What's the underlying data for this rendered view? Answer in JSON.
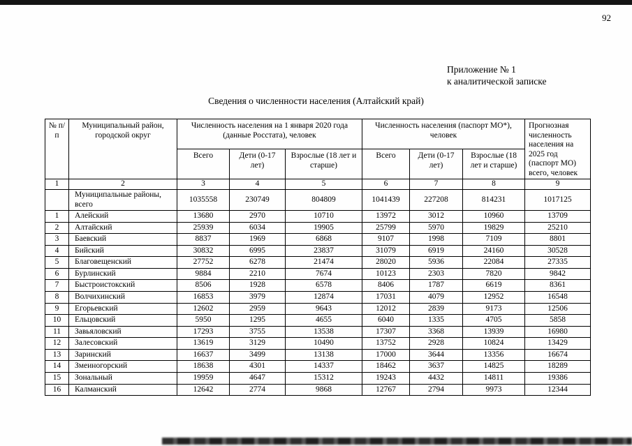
{
  "page": {
    "number": "92",
    "appendix_line1": "Приложение № 1",
    "appendix_line2": "к аналитической записке",
    "title": "Сведения о численности населения (Алтайский край)"
  },
  "table": {
    "header": {
      "col_num": "№ п/п",
      "col_district": "Муниципальный район, городской округ",
      "group_2020": "Численность населения на 1 января 2020 года (данные Росстата), человек",
      "group_passport": "Численность населения (паспорт МО*), человек",
      "col_forecast": "Прогнозная численность населения на 2025 год (паспорт МО) всего, человек",
      "sub_total": "Всего",
      "sub_children": "Дети (0-17 лет)",
      "sub_adults": "Взрослые (18 лет и старше)"
    },
    "column_numbers": [
      "1",
      "2",
      "3",
      "4",
      "5",
      "6",
      "7",
      "8",
      "9"
    ],
    "rows": [
      {
        "num": "",
        "name": "Муниципальные районы, всего",
        "values": [
          "1035558",
          "230749",
          "804809",
          "1041439",
          "227208",
          "814231",
          "1017125"
        ]
      },
      {
        "num": "1",
        "name": "Алейский",
        "values": [
          "13680",
          "2970",
          "10710",
          "13972",
          "3012",
          "10960",
          "13709"
        ]
      },
      {
        "num": "2",
        "name": "Алтайский",
        "values": [
          "25939",
          "6034",
          "19905",
          "25799",
          "5970",
          "19829",
          "25210"
        ]
      },
      {
        "num": "3",
        "name": "Баевский",
        "values": [
          "8837",
          "1969",
          "6868",
          "9107",
          "1998",
          "7109",
          "8801"
        ]
      },
      {
        "num": "4",
        "name": "Бийский",
        "values": [
          "30832",
          "6995",
          "23837",
          "31079",
          "6919",
          "24160",
          "30528"
        ]
      },
      {
        "num": "5",
        "name": "Благовещенский",
        "values": [
          "27752",
          "6278",
          "21474",
          "28020",
          "5936",
          "22084",
          "27335"
        ]
      },
      {
        "num": "6",
        "name": "Бурлинский",
        "values": [
          "9884",
          "2210",
          "7674",
          "10123",
          "2303",
          "7820",
          "9842"
        ]
      },
      {
        "num": "7",
        "name": "Быстроистокский",
        "values": [
          "8506",
          "1928",
          "6578",
          "8406",
          "1787",
          "6619",
          "8361"
        ]
      },
      {
        "num": "8",
        "name": "Волчихинский",
        "values": [
          "16853",
          "3979",
          "12874",
          "17031",
          "4079",
          "12952",
          "16548"
        ]
      },
      {
        "num": "9",
        "name": "Егорьевский",
        "values": [
          "12602",
          "2959",
          "9643",
          "12012",
          "2839",
          "9173",
          "12506"
        ]
      },
      {
        "num": "10",
        "name": "Ельцовский",
        "values": [
          "5950",
          "1295",
          "4655",
          "6040",
          "1335",
          "4705",
          "5858"
        ]
      },
      {
        "num": "11",
        "name": "Завьяловский",
        "values": [
          "17293",
          "3755",
          "13538",
          "17307",
          "3368",
          "13939",
          "16980"
        ]
      },
      {
        "num": "12",
        "name": "Залесовский",
        "values": [
          "13619",
          "3129",
          "10490",
          "13752",
          "2928",
          "10824",
          "13429"
        ]
      },
      {
        "num": "13",
        "name": "Заринский",
        "values": [
          "16637",
          "3499",
          "13138",
          "17000",
          "3644",
          "13356",
          "16674"
        ]
      },
      {
        "num": "14",
        "name": "Змеиногорский",
        "values": [
          "18638",
          "4301",
          "14337",
          "18462",
          "3637",
          "14825",
          "18289"
        ]
      },
      {
        "num": "15",
        "name": "Зональный",
        "values": [
          "19959",
          "4647",
          "15312",
          "19243",
          "4432",
          "14811",
          "19386"
        ]
      },
      {
        "num": "16",
        "name": "Калманский",
        "values": [
          "12642",
          "2774",
          "9868",
          "12767",
          "2794",
          "9973",
          "12344"
        ]
      }
    ]
  }
}
